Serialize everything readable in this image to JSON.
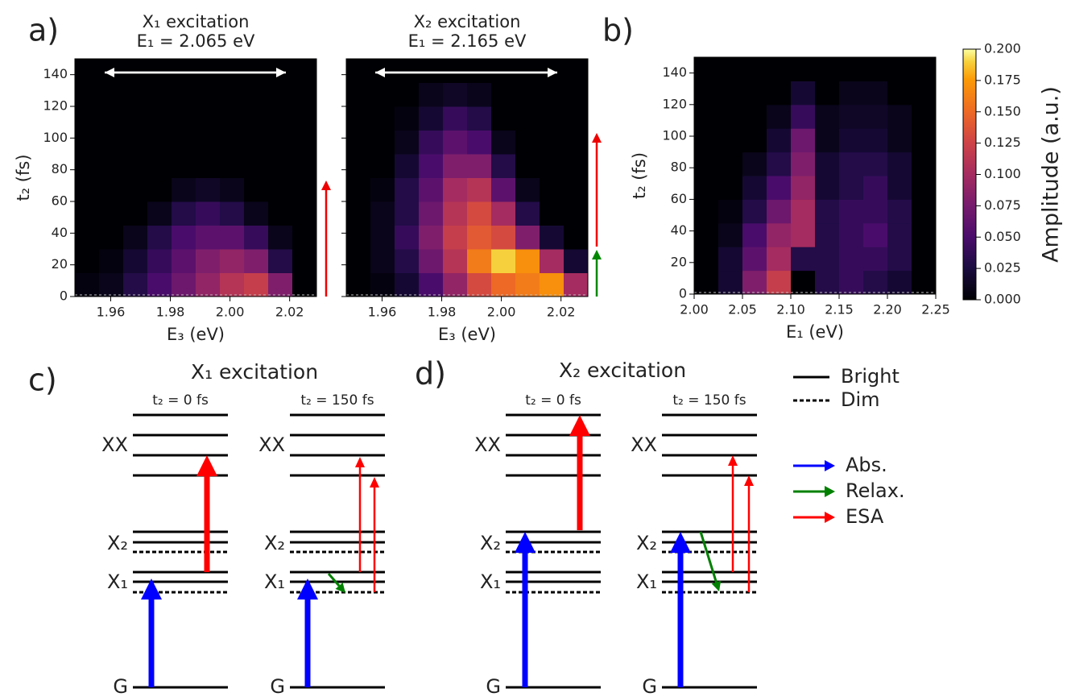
{
  "panel_labels": [
    "a)",
    "b)",
    "c)",
    "d)"
  ],
  "chart_data": [
    {
      "type": "heatmap",
      "title": "X₁ excitation",
      "subtitle": "E₁ = 2.065 eV",
      "x_label": "E₃ (eV)",
      "y_label": "t₂ (fs)",
      "colormap": "inferno",
      "clim": [
        0,
        0.2
      ],
      "xlim": [
        1.948,
        2.029
      ],
      "xticks": [
        1.96,
        1.98,
        {
          "value": 2,
          "label": "2.00"
        },
        2.02
      ],
      "ylim": [
        0,
        150
      ],
      "yticks": [
        0,
        20,
        40,
        60,
        80,
        100,
        120,
        140
      ],
      "show_ytick_labels": true,
      "x_bins": [
        1.948,
        1.9561,
        1.9642,
        1.9723,
        1.9804,
        1.9885,
        1.9966,
        2.0047,
        2.0128,
        2.0209,
        2.029
      ],
      "y_bins": [
        0,
        15,
        30,
        45,
        60,
        75,
        90,
        105,
        120,
        135,
        150
      ],
      "z": [
        [
          0.005,
          0.01,
          0.03,
          0.05,
          0.07,
          0.09,
          0.11,
          0.12,
          0.08,
          0
        ],
        [
          0,
          0.005,
          0.02,
          0.04,
          0.06,
          0.08,
          0.09,
          0.08,
          0.03,
          0
        ],
        [
          0,
          0,
          0.01,
          0.03,
          0.05,
          0.06,
          0.06,
          0.04,
          0.01,
          0
        ],
        [
          0,
          0,
          0,
          0.01,
          0.03,
          0.04,
          0.03,
          0.01,
          0,
          0
        ],
        [
          0,
          0,
          0,
          0,
          0.01,
          0.015,
          0.01,
          0,
          0,
          0
        ],
        [
          0,
          0,
          0,
          0,
          0,
          0,
          0,
          0,
          0,
          0
        ],
        [
          0,
          0,
          0,
          0,
          0,
          0,
          0,
          0,
          0,
          0
        ],
        [
          0,
          0,
          0,
          0,
          0,
          0,
          0,
          0,
          0,
          0
        ],
        [
          0,
          0,
          0,
          0,
          0,
          0,
          0,
          0,
          0,
          0
        ],
        [
          0,
          0,
          0,
          0,
          0,
          0,
          0,
          0,
          0,
          0
        ]
      ]
    },
    {
      "type": "heatmap",
      "title": "X₂ excitation",
      "subtitle": "E₁ = 2.165 eV",
      "x_label": "E₃ (eV)",
      "colormap": "inferno",
      "clim": [
        0,
        0.2
      ],
      "xlim": [
        1.948,
        2.029
      ],
      "xticks": [
        1.96,
        1.98,
        {
          "value": 2,
          "label": "2.00"
        },
        2.02
      ],
      "ylim": [
        0,
        150
      ],
      "yticks": [
        0,
        20,
        40,
        60,
        80,
        100,
        120,
        140
      ],
      "show_ytick_labels": false,
      "x_bins": [
        1.948,
        1.9561,
        1.9642,
        1.9723,
        1.9804,
        1.9885,
        1.9966,
        2.0047,
        2.0128,
        2.0209,
        2.029
      ],
      "y_bins": [
        0,
        15,
        30,
        45,
        60,
        75,
        90,
        105,
        120,
        135,
        150
      ],
      "z": [
        [
          0,
          0.005,
          0.02,
          0.05,
          0.09,
          0.13,
          0.15,
          0.16,
          0.17,
          0.1
        ],
        [
          0,
          0.01,
          0.03,
          0.07,
          0.11,
          0.16,
          0.19,
          0.17,
          0.1,
          0.02
        ],
        [
          0,
          0.01,
          0.04,
          0.08,
          0.12,
          0.14,
          0.13,
          0.08,
          0.02,
          0
        ],
        [
          0,
          0.01,
          0.03,
          0.07,
          0.11,
          0.13,
          0.1,
          0.03,
          0,
          0
        ],
        [
          0,
          0.005,
          0.03,
          0.06,
          0.1,
          0.11,
          0.06,
          0.01,
          0,
          0
        ],
        [
          0,
          0,
          0.02,
          0.05,
          0.08,
          0.08,
          0.03,
          0,
          0,
          0
        ],
        [
          0,
          0,
          0.01,
          0.04,
          0.06,
          0.05,
          0.01,
          0,
          0,
          0
        ],
        [
          0,
          0,
          0.005,
          0.02,
          0.04,
          0.03,
          0,
          0,
          0,
          0
        ],
        [
          0,
          0,
          0,
          0.01,
          0.015,
          0.01,
          0,
          0,
          0,
          0
        ],
        [
          0,
          0,
          0,
          0,
          0,
          0,
          0,
          0,
          0,
          0
        ]
      ]
    },
    {
      "type": "heatmap",
      "x_label": "E₁ (eV)",
      "y_label": "t₂ (fs)",
      "colormap": "inferno",
      "clim": [
        0,
        0.2
      ],
      "xlim": [
        2.0,
        2.25
      ],
      "xticks": [
        {
          "value": 2,
          "label": "2.00"
        },
        2.05,
        {
          "value": 2.1,
          "label": "2.10"
        },
        2.15,
        {
          "value": 2.2,
          "label": "2.20"
        },
        2.25
      ],
      "ylim": [
        0,
        150
      ],
      "yticks": [
        0,
        20,
        40,
        60,
        80,
        100,
        120,
        140
      ],
      "show_ytick_labels": true,
      "x_bins": [
        2.0,
        2.025,
        2.05,
        2.075,
        2.1,
        2.125,
        2.15,
        2.175,
        2.2,
        2.225,
        2.25
      ],
      "y_bins": [
        0,
        15,
        30,
        45,
        60,
        75,
        90,
        105,
        120,
        135,
        150
      ],
      "z": [
        [
          0,
          0.02,
          0.08,
          0.12,
          0,
          0.03,
          0.04,
          0.03,
          0.02,
          0
        ],
        [
          0,
          0.02,
          0.06,
          0.1,
          0.03,
          0.03,
          0.04,
          0.04,
          0.03,
          0
        ],
        [
          0,
          0.01,
          0.05,
          0.09,
          0.1,
          0.03,
          0.04,
          0.05,
          0.03,
          0
        ],
        [
          0,
          0.005,
          0.03,
          0.07,
          0.1,
          0.03,
          0.04,
          0.04,
          0.03,
          0
        ],
        [
          0,
          0,
          0.02,
          0.05,
          0.09,
          0.02,
          0.03,
          0.04,
          0.02,
          0
        ],
        [
          0,
          0,
          0.01,
          0.03,
          0.08,
          0.02,
          0.03,
          0.03,
          0.02,
          0
        ],
        [
          0,
          0,
          0,
          0.02,
          0.07,
          0.01,
          0.02,
          0.02,
          0.01,
          0
        ],
        [
          0,
          0,
          0,
          0.01,
          0.04,
          0.01,
          0.015,
          0.015,
          0.01,
          0
        ],
        [
          0,
          0,
          0,
          0,
          0.02,
          0,
          0.01,
          0.01,
          0,
          0
        ],
        [
          0,
          0,
          0,
          0,
          0,
          0,
          0,
          0,
          0,
          0
        ]
      ],
      "colorbar": {
        "label": "Amplitude (a.u.)",
        "ticks": [
          {
            "value": 0,
            "label": "0.000"
          },
          {
            "value": 0.025,
            "label": "0.025"
          },
          {
            "value": 0.05,
            "label": "0.050"
          },
          {
            "value": 0.075,
            "label": "0.075"
          },
          {
            "value": 0.1,
            "label": "0.100"
          },
          {
            "value": 0.125,
            "label": "0.125"
          },
          {
            "value": 0.15,
            "label": "0.150"
          },
          {
            "value": 0.175,
            "label": "0.175"
          },
          {
            "value": 0.2,
            "label": "0.200"
          }
        ]
      }
    }
  ],
  "diagrams": [
    {
      "title": "X₁ excitation",
      "columns": [
        {
          "label": "t₂ = 0 fs",
          "levels": [
            "XX",
            "X₂",
            "X₁",
            "G"
          ]
        },
        {
          "label": "t₂ = 150 fs",
          "levels": [
            "XX",
            "X₂",
            "X₁",
            "G"
          ]
        }
      ]
    },
    {
      "title": "X₂ excitation",
      "columns": [
        {
          "label": "t₂ = 0 fs",
          "levels": [
            "XX",
            "X₂",
            "X₁",
            "G"
          ]
        },
        {
          "label": "t₂ = 150 fs",
          "levels": [
            "XX",
            "X₂",
            "X₁",
            "G"
          ]
        }
      ]
    }
  ],
  "legend": {
    "lines": [
      "Bright",
      "Dim"
    ],
    "arrows": [
      "Abs.",
      "Relax.",
      "ESA"
    ]
  }
}
